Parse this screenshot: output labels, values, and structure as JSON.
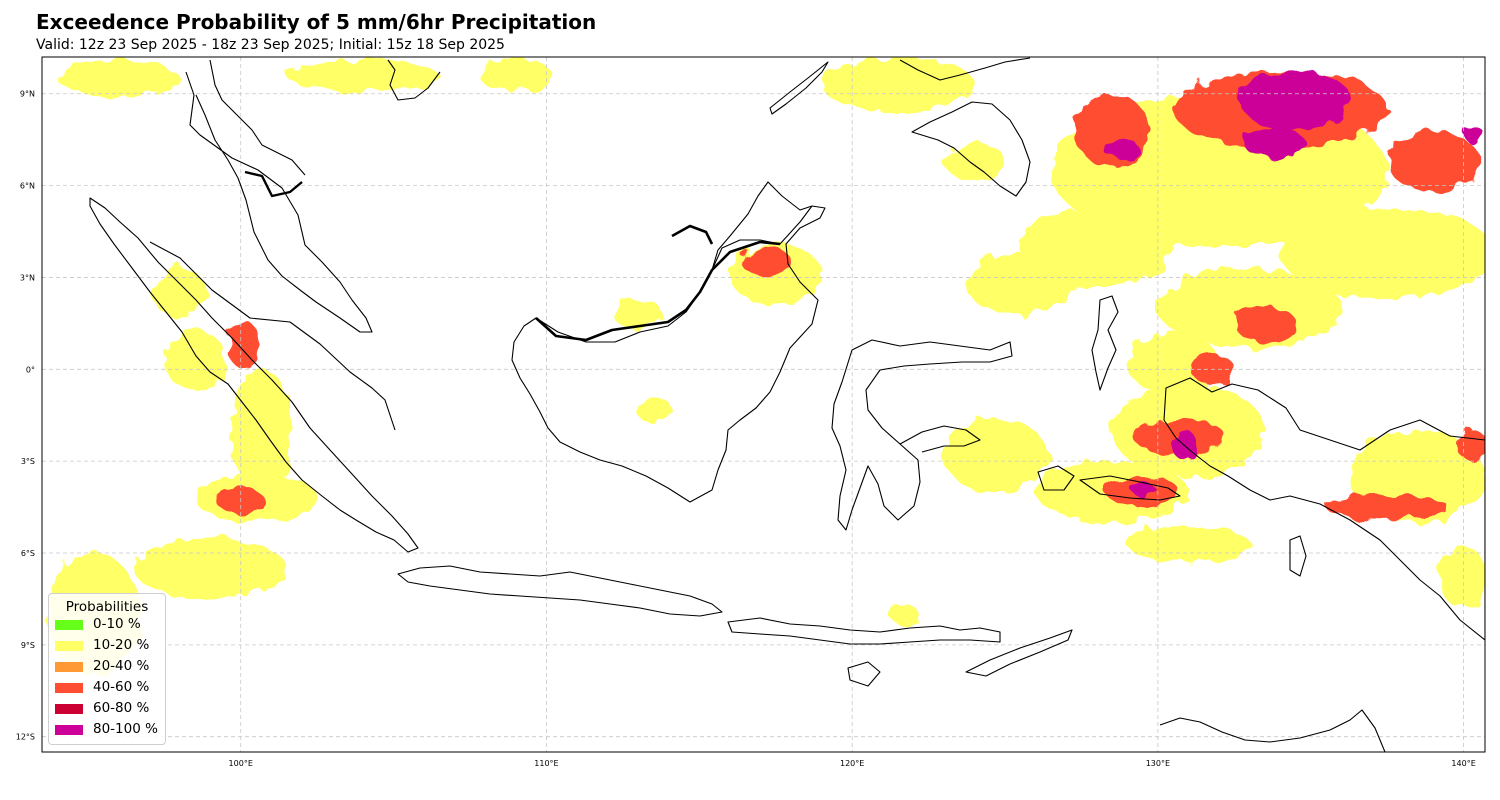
{
  "header": {
    "title": "Exceedence Probability of 5 mm/6hr Precipitation",
    "subtitle": "Valid: 12z 23 Sep 2025 - 18z 23 Sep 2025; Initial: 15z 18 Sep 2025"
  },
  "map": {
    "lon_range": [
      93.5,
      140.7
    ],
    "lat_range": [
      -12.5,
      10.2
    ],
    "lon_ticks": [
      {
        "value": 100,
        "label": "100°E"
      },
      {
        "value": 110,
        "label": "110°E"
      },
      {
        "value": 120,
        "label": "120°E"
      },
      {
        "value": 130,
        "label": "130°E"
      },
      {
        "value": 140,
        "label": "140°E"
      }
    ],
    "lat_ticks": [
      {
        "value": 9,
        "label": "9°N"
      },
      {
        "value": 6,
        "label": "6°N"
      },
      {
        "value": 3,
        "label": "3°N"
      },
      {
        "value": 0,
        "label": "0°"
      },
      {
        "value": -3,
        "label": "3°S"
      },
      {
        "value": -6,
        "label": "6°S"
      },
      {
        "value": -9,
        "label": "9°S"
      },
      {
        "value": -12,
        "label": "12°S"
      }
    ],
    "grid": true,
    "coastline_color": "#000000",
    "grid_color": "#c8c8c8"
  },
  "legend": {
    "title": "Probabilities",
    "placement": "bottom-left",
    "items": [
      {
        "label": "0-10 %",
        "color": "#66ff1a"
      },
      {
        "label": "10-20 %",
        "color": "#ffff66"
      },
      {
        "label": "20-40 %",
        "color": "#ff9933"
      },
      {
        "label": "40-60 %",
        "color": "#ff4d33"
      },
      {
        "label": "60-80 %",
        "color": "#cc0033"
      },
      {
        "label": "80-100 %",
        "color": "#cc0099"
      }
    ]
  },
  "chart_data": {
    "type": "heatmap",
    "color_yellow": "#ffff66",
    "color_red": "#ff4d33",
    "color_magenta": "#cc0099",
    "yellow_regions": [
      {
        "lon": 96.0,
        "lat": 9.5,
        "rlon": 2.0,
        "rlat": 0.6
      },
      {
        "lon": 104.0,
        "lat": 9.6,
        "rlon": 2.5,
        "rlat": 0.5
      },
      {
        "lon": 109.0,
        "lat": 9.6,
        "rlon": 1.2,
        "rlat": 0.5
      },
      {
        "lon": 121.5,
        "lat": 9.3,
        "rlon": 2.5,
        "rlat": 0.9
      },
      {
        "lon": 124.0,
        "lat": 6.8,
        "rlon": 1.0,
        "rlat": 0.6
      },
      {
        "lon": 132.0,
        "lat": 6.5,
        "rlon": 5.5,
        "rlat": 2.5
      },
      {
        "lon": 128.0,
        "lat": 4.0,
        "rlon": 2.5,
        "rlat": 1.3
      },
      {
        "lon": 137.5,
        "lat": 3.8,
        "rlon": 3.5,
        "rlat": 1.5
      },
      {
        "lon": 133.0,
        "lat": 2.0,
        "rlon": 3.0,
        "rlat": 1.3
      },
      {
        "lon": 125.5,
        "lat": 2.8,
        "rlon": 1.8,
        "rlat": 1.0
      },
      {
        "lon": 98.0,
        "lat": 2.5,
        "rlon": 0.9,
        "rlat": 0.8
      },
      {
        "lon": 98.5,
        "lat": 0.3,
        "rlon": 1.0,
        "rlat": 1.0
      },
      {
        "lon": 100.7,
        "lat": -2.0,
        "rlon": 1.0,
        "rlat": 2.0
      },
      {
        "lon": 100.5,
        "lat": -4.2,
        "rlon": 2.0,
        "rlat": 0.8
      },
      {
        "lon": 99.0,
        "lat": -6.5,
        "rlon": 2.5,
        "rlat": 1.0
      },
      {
        "lon": 95.2,
        "lat": -8.0,
        "rlon": 1.5,
        "rlat": 2.0
      },
      {
        "lon": 117.5,
        "lat": 3.1,
        "rlon": 1.5,
        "rlat": 1.0
      },
      {
        "lon": 113.0,
        "lat": 1.8,
        "rlon": 0.8,
        "rlat": 0.5
      },
      {
        "lon": 113.5,
        "lat": -1.3,
        "rlon": 0.6,
        "rlat": 0.4
      },
      {
        "lon": 124.7,
        "lat": -2.8,
        "rlon": 1.7,
        "rlat": 1.2
      },
      {
        "lon": 128.5,
        "lat": -4.0,
        "rlon": 2.5,
        "rlat": 1.0
      },
      {
        "lon": 131.0,
        "lat": -2.0,
        "rlon": 2.5,
        "rlat": 1.5
      },
      {
        "lon": 131.0,
        "lat": -5.7,
        "rlon": 2.0,
        "rlat": 0.6
      },
      {
        "lon": 138.5,
        "lat": -3.5,
        "rlon": 2.2,
        "rlat": 1.5
      },
      {
        "lon": 140.0,
        "lat": -6.8,
        "rlon": 0.8,
        "rlat": 1.0
      },
      {
        "lon": 121.7,
        "lat": -8.0,
        "rlon": 0.5,
        "rlat": 0.3
      },
      {
        "lon": 130.5,
        "lat": 0.2,
        "rlon": 1.5,
        "rlat": 1.0
      }
    ],
    "red_regions": [
      {
        "lon": 128.5,
        "lat": 7.8,
        "rlon": 1.2,
        "rlat": 1.2
      },
      {
        "lon": 134.0,
        "lat": 8.5,
        "rlon": 3.5,
        "rlat": 1.3
      },
      {
        "lon": 139.0,
        "lat": 6.8,
        "rlon": 1.5,
        "rlat": 1.0
      },
      {
        "lon": 117.2,
        "lat": 3.5,
        "rlon": 0.8,
        "rlat": 0.5
      },
      {
        "lon": 100.1,
        "lat": 0.8,
        "rlon": 0.5,
        "rlat": 0.8
      },
      {
        "lon": 100.0,
        "lat": -4.3,
        "rlon": 0.8,
        "rlat": 0.4
      },
      {
        "lon": 130.7,
        "lat": -2.2,
        "rlon": 1.5,
        "rlat": 0.6
      },
      {
        "lon": 129.5,
        "lat": -4.0,
        "rlon": 1.2,
        "rlat": 0.5
      },
      {
        "lon": 133.5,
        "lat": 1.5,
        "rlon": 1.0,
        "rlat": 0.6
      },
      {
        "lon": 137.5,
        "lat": -4.5,
        "rlon": 2.0,
        "rlat": 0.4
      },
      {
        "lon": 140.3,
        "lat": -2.5,
        "rlon": 0.5,
        "rlat": 0.5
      },
      {
        "lon": 131.8,
        "lat": 0.0,
        "rlon": 0.7,
        "rlat": 0.5
      }
    ],
    "magenta_regions": [
      {
        "lon": 134.5,
        "lat": 8.8,
        "rlon": 1.8,
        "rlat": 1.0
      },
      {
        "lon": 133.8,
        "lat": 7.4,
        "rlon": 1.0,
        "rlat": 0.5
      },
      {
        "lon": 128.8,
        "lat": 7.2,
        "rlon": 0.6,
        "rlat": 0.3
      },
      {
        "lon": 130.9,
        "lat": -2.5,
        "rlon": 0.4,
        "rlat": 0.5
      },
      {
        "lon": 129.5,
        "lat": -3.9,
        "rlon": 0.4,
        "rlat": 0.2
      },
      {
        "lon": 140.3,
        "lat": 7.7,
        "rlon": 0.3,
        "rlat": 0.3
      }
    ]
  }
}
